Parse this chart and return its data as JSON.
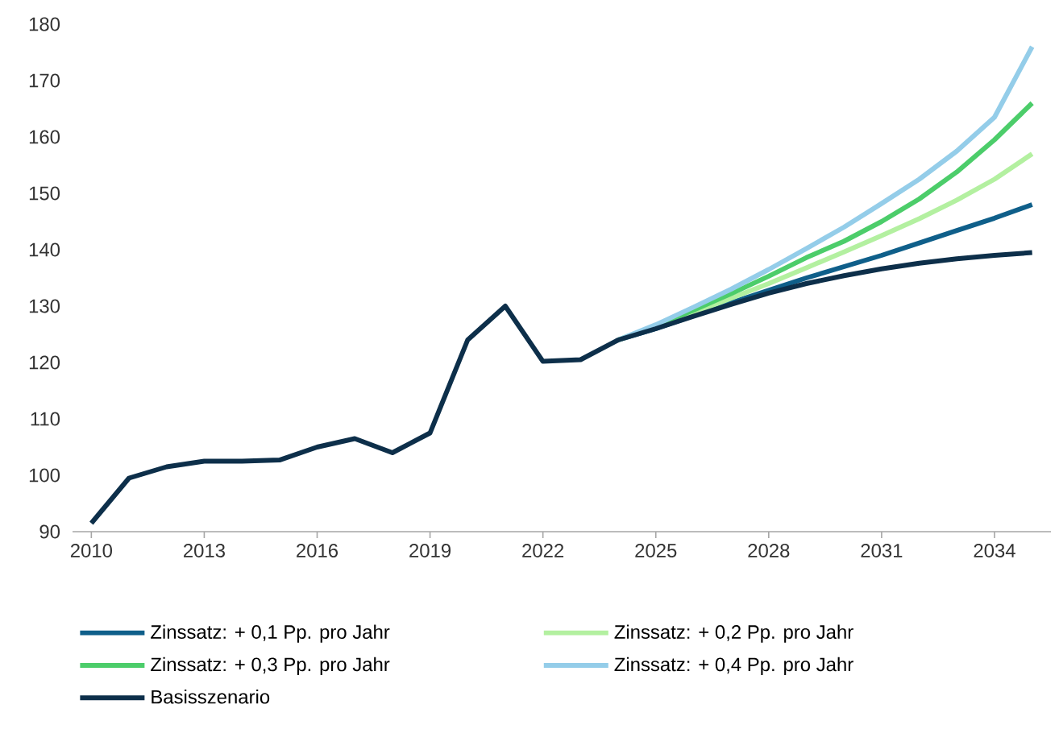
{
  "chart_data": {
    "type": "line",
    "xlim": [
      2009.5,
      2035.5
    ],
    "ylim": [
      90,
      180
    ],
    "xticks": [
      2010,
      2013,
      2016,
      2019,
      2022,
      2025,
      2028,
      2031,
      2034
    ],
    "yticks": [
      90,
      100,
      110,
      120,
      130,
      140,
      150,
      160,
      170,
      180
    ],
    "legend": "bottom",
    "series": [
      {
        "name": "Zinssatz: + 0,1 Pp. pro Jahr",
        "color": "#0f5f8a",
        "x": [
          2024,
          2025,
          2026,
          2027,
          2028,
          2029,
          2030,
          2031,
          2032,
          2033,
          2034,
          2035
        ],
        "values": [
          124,
          126,
          128.3,
          130.6,
          132.8,
          135,
          137,
          139,
          141.2,
          143.4,
          145.6,
          148
        ]
      },
      {
        "name": "Zinssatz: + 0,2 Pp. pro Jahr",
        "color": "#b3f0a0",
        "x": [
          2024,
          2025,
          2026,
          2027,
          2028,
          2029,
          2030,
          2031,
          2032,
          2033,
          2034,
          2035
        ],
        "values": [
          124,
          126.3,
          128.8,
          131.4,
          134,
          136.8,
          139.6,
          142.5,
          145.5,
          148.8,
          152.5,
          157
        ]
      },
      {
        "name": "Zinssatz: + 0,3 Pp. pro Jahr",
        "color": "#4ccd6a",
        "x": [
          2024,
          2025,
          2026,
          2027,
          2028,
          2029,
          2030,
          2031,
          2032,
          2033,
          2034,
          2035
        ],
        "values": [
          124,
          126.5,
          129.3,
          132.2,
          135.3,
          138.6,
          141.5,
          145,
          149,
          153.8,
          159.5,
          166
        ]
      },
      {
        "name": "Zinssatz: + 0,4 Pp. pro Jahr",
        "color": "#94cde9",
        "x": [
          2024,
          2025,
          2026,
          2027,
          2028,
          2029,
          2030,
          2031,
          2032,
          2033,
          2034,
          2035
        ],
        "values": [
          124,
          126.7,
          129.8,
          133,
          136.5,
          140.2,
          144,
          148.2,
          152.5,
          157.5,
          163.5,
          176
        ]
      },
      {
        "name": "Basisszenario",
        "color": "#0d2f4a",
        "x": [
          2010,
          2011,
          2012,
          2013,
          2014,
          2015,
          2016,
          2017,
          2018,
          2019,
          2020,
          2021,
          2022,
          2023,
          2024,
          2025,
          2026,
          2027,
          2028,
          2029,
          2030,
          2031,
          2032,
          2033,
          2034,
          2035
        ],
        "values": [
          91.5,
          99.5,
          101.5,
          102.5,
          102.5,
          102.7,
          105,
          106.5,
          104,
          107.5,
          124,
          130,
          120.2,
          120.5,
          124,
          126,
          128.2,
          130.3,
          132.3,
          134,
          135.4,
          136.6,
          137.6,
          138.4,
          139,
          139.5
        ]
      }
    ]
  }
}
